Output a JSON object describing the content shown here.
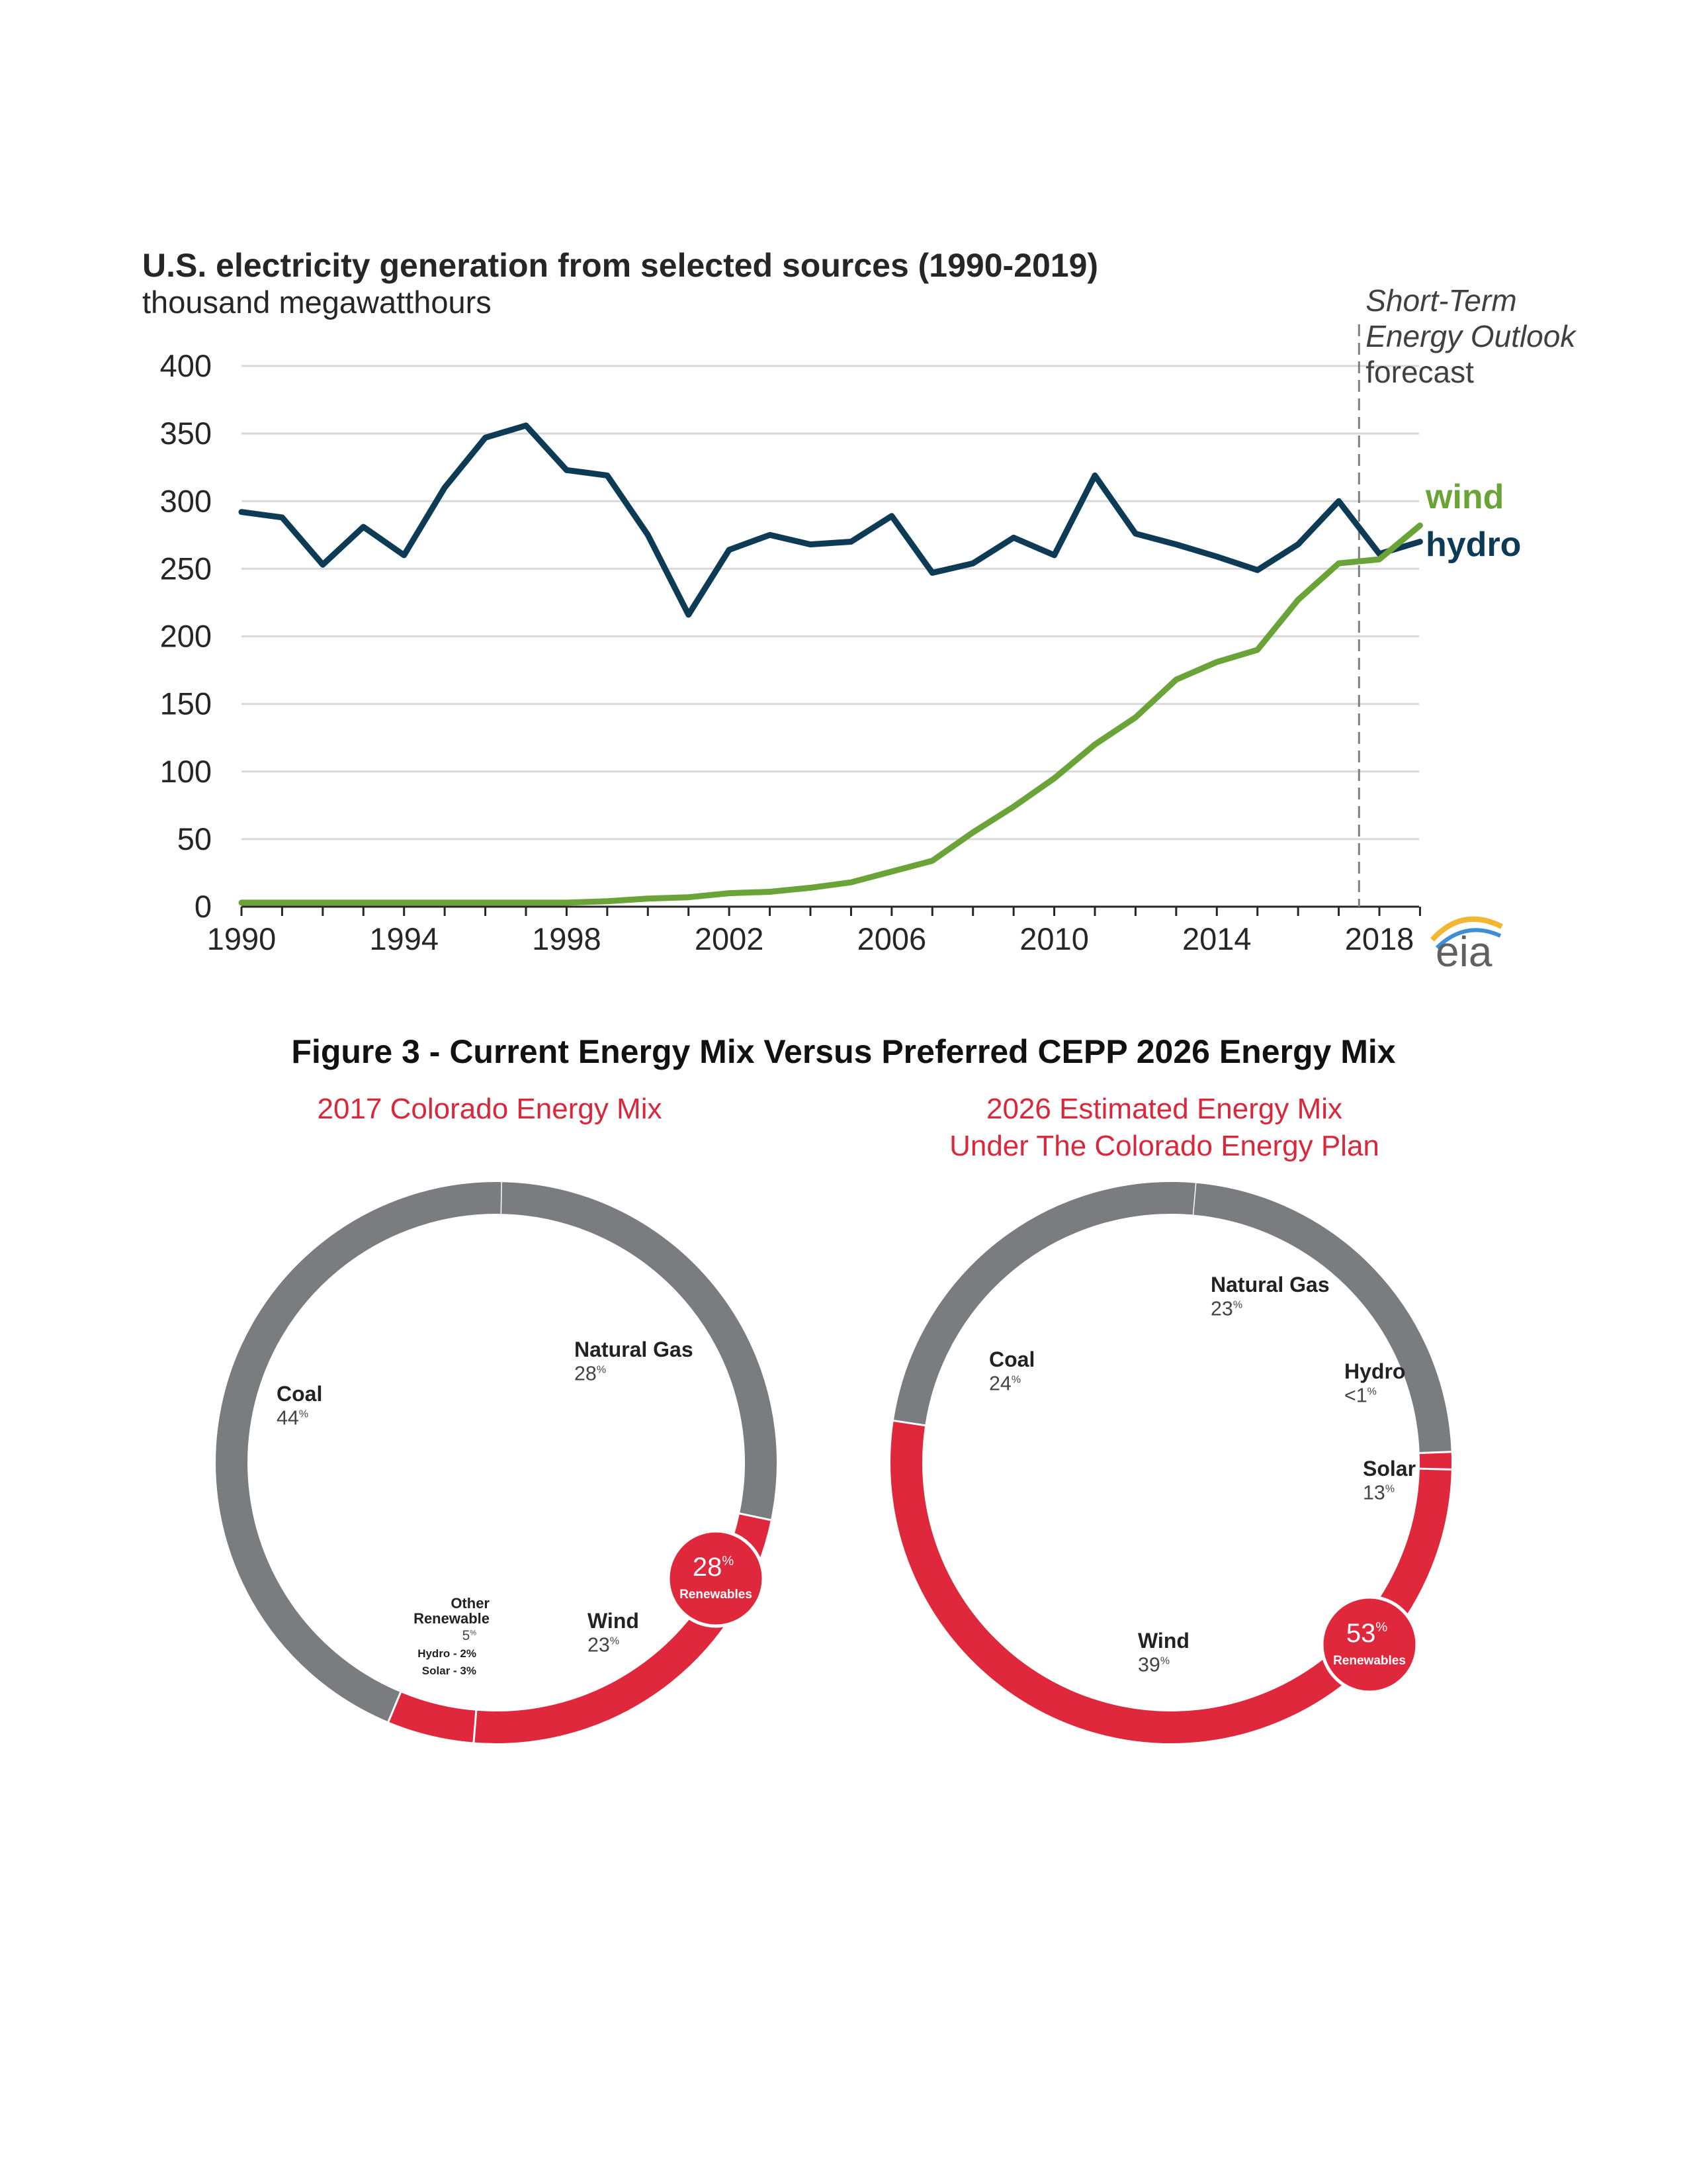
{
  "chart_data": [
    {
      "type": "line",
      "title": "U.S. electricity generation from selected sources (1990-2019)",
      "subtitle": "thousand megawatthours",
      "x": [
        1990,
        1991,
        1992,
        1993,
        1994,
        1995,
        1996,
        1997,
        1998,
        1999,
        2000,
        2001,
        2002,
        2003,
        2004,
        2005,
        2006,
        2007,
        2008,
        2009,
        2010,
        2011,
        2012,
        2013,
        2014,
        2015,
        2016,
        2017,
        2018,
        2019
      ],
      "series": [
        {
          "name": "hydro",
          "color": "#0d3b55",
          "values": [
            292,
            288,
            253,
            281,
            260,
            310,
            347,
            356,
            323,
            319,
            275,
            216,
            264,
            275,
            268,
            270,
            289,
            247,
            254,
            273,
            260,
            319,
            276,
            268,
            259,
            249,
            268,
            300,
            261,
            270
          ]
        },
        {
          "name": "wind",
          "color": "#6aa338",
          "values": [
            3,
            3,
            3,
            3,
            3,
            3,
            3,
            3,
            3,
            4,
            6,
            7,
            10,
            11,
            14,
            18,
            26,
            34,
            55,
            74,
            95,
            120,
            140,
            168,
            181,
            190,
            227,
            254,
            257,
            282
          ]
        }
      ],
      "xlim": [
        1990,
        2018
      ],
      "ylim": [
        0,
        400
      ],
      "y_ticks": [
        "0",
        "50",
        "100",
        "150",
        "200",
        "250",
        "300",
        "350",
        "400"
      ],
      "x_tick_labels": [
        "1990",
        "1994",
        "1998",
        "2002",
        "2006",
        "2010",
        "2014",
        "2018"
      ],
      "forecast_marker": {
        "x": 2017.5,
        "label_lines": [
          "Short-Term",
          "Energy Outlook",
          "forecast"
        ]
      },
      "grid": true,
      "logo": "eia"
    },
    {
      "type": "pie",
      "heading": "2017 Colorado Energy Mix",
      "slices": [
        {
          "name": "Coal",
          "value": 44,
          "group": "fossil"
        },
        {
          "name": "Natural Gas",
          "value": 28,
          "group": "fossil"
        },
        {
          "name": "Wind",
          "value": 23,
          "group": "renewable"
        },
        {
          "name": "Other Renewable",
          "value": 5,
          "group": "renewable",
          "detail": [
            "Hydro - 2%",
            "Solar - 3%"
          ]
        }
      ],
      "badge": {
        "value": "28",
        "label": "Renewables"
      }
    },
    {
      "type": "pie",
      "heading_lines": [
        "2026 Estimated Energy Mix",
        "Under The Colorado Energy Plan"
      ],
      "slices": [
        {
          "name": "Coal",
          "value": 24,
          "display": "24",
          "group": "fossil"
        },
        {
          "name": "Natural Gas",
          "value": 23,
          "display": "23",
          "group": "fossil"
        },
        {
          "name": "Hydro",
          "value": 1,
          "display": "<1",
          "group": "renewable"
        },
        {
          "name": "Solar",
          "value": 13,
          "display": "13",
          "group": "renewable"
        },
        {
          "name": "Wind",
          "value": 39,
          "display": "39",
          "group": "renewable"
        }
      ],
      "badge": {
        "value": "53",
        "label": "Renewables"
      }
    }
  ],
  "figure_caption": "Figure 3 - Current Energy Mix Versus Preferred CEPP 2026 Energy Mix",
  "colors": {
    "fossil": "#7a7c80",
    "renewable": "#e0283c",
    "heading_red": "#d9283b",
    "wind_green": "#6aa338",
    "hydro_navy": "#0d3b55"
  },
  "percent_sign": "%"
}
